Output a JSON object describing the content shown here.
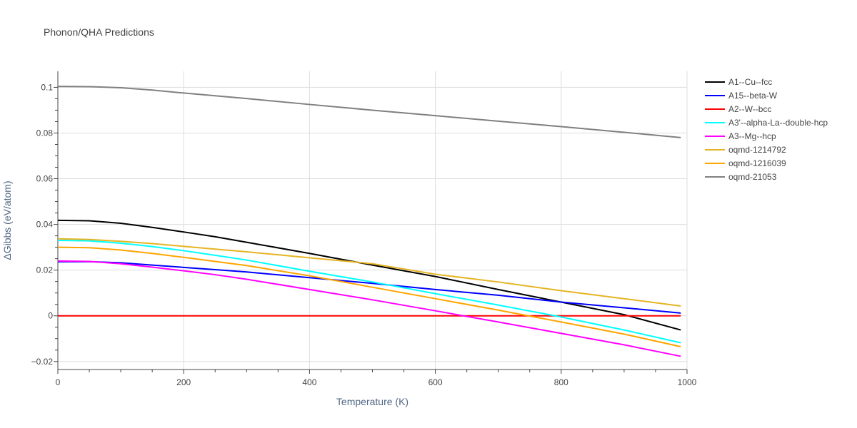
{
  "title": "Phonon/QHA Predictions",
  "chart_data": {
    "type": "line",
    "title": "Phonon/QHA Predictions",
    "xlabel": "Temperature (K)",
    "ylabel": "ΔGibbs (eV/atom)",
    "xlim": [
      0,
      1000
    ],
    "ylim": [
      -0.0235,
      0.107
    ],
    "x_ticks": [
      0,
      200,
      400,
      600,
      800,
      1000
    ],
    "y_ticks": [
      -0.02,
      0,
      0.02,
      0.04,
      0.06,
      0.08,
      0.1
    ],
    "x_tick_labels": [
      "0",
      "200",
      "400",
      "600",
      "800",
      "1000"
    ],
    "y_tick_labels": [
      "−0.02",
      "0",
      "0.02",
      "0.04",
      "0.06",
      "0.08",
      "0.1"
    ],
    "grid": true,
    "legend_position": "right",
    "x": [
      0,
      50,
      100,
      150,
      200,
      250,
      300,
      400,
      500,
      600,
      700,
      800,
      900,
      990
    ],
    "series": [
      {
        "name": "A1--Cu--fcc",
        "color": "#000000",
        "values": [
          0.0418,
          0.0416,
          0.0405,
          0.0387,
          0.0367,
          0.0346,
          0.0322,
          0.0273,
          0.0222,
          0.0172,
          0.0115,
          0.006,
          0.0005,
          -0.0062
        ]
      },
      {
        "name": "A15--beta-W",
        "color": "#0000ff",
        "values": [
          0.0237,
          0.0237,
          0.0232,
          0.0222,
          0.0212,
          0.0202,
          0.0192,
          0.0167,
          0.0142,
          0.0115,
          0.009,
          0.006,
          0.0035,
          0.0012
        ]
      },
      {
        "name": "A2--W--bcc",
        "color": "#ff0000",
        "values": [
          0,
          0,
          0,
          0,
          0,
          0,
          0,
          0,
          0,
          0,
          0,
          0,
          0,
          0
        ]
      },
      {
        "name": "A3'--alpha-La--double-hcp",
        "color": "#00ffff",
        "values": [
          0.033,
          0.0328,
          0.0318,
          0.0303,
          0.0285,
          0.0265,
          0.0244,
          0.0195,
          0.0148,
          0.0097,
          0.0047,
          -0.0005,
          -0.0062,
          -0.0118
        ]
      },
      {
        "name": "A3--Mg--hcp",
        "color": "#ff00ff",
        "values": [
          0.024,
          0.0238,
          0.0228,
          0.0213,
          0.0197,
          0.018,
          0.016,
          0.0115,
          0.007,
          0.0022,
          -0.0027,
          -0.0077,
          -0.0127,
          -0.0177
        ]
      },
      {
        "name": "oqmd-1214792",
        "color": "#e6b422",
        "values": [
          0.0337,
          0.0334,
          0.0326,
          0.0316,
          0.0304,
          0.0292,
          0.028,
          0.0254,
          0.0228,
          0.0182,
          0.0148,
          0.011,
          0.0075,
          0.0043
        ]
      },
      {
        "name": "oqmd-1216039",
        "color": "#ffa500",
        "values": [
          0.03,
          0.0298,
          0.0288,
          0.0273,
          0.0256,
          0.0238,
          0.022,
          0.0175,
          0.0125,
          0.0075,
          0.0025,
          -0.0027,
          -0.008,
          -0.0135
        ]
      },
      {
        "name": "oqmd-21053",
        "color": "#808080",
        "values": [
          0.1004,
          0.1003,
          0.0998,
          0.0988,
          0.0975,
          0.0963,
          0.0951,
          0.0925,
          0.09,
          0.0876,
          0.0852,
          0.0828,
          0.0803,
          0.078
        ]
      }
    ]
  }
}
